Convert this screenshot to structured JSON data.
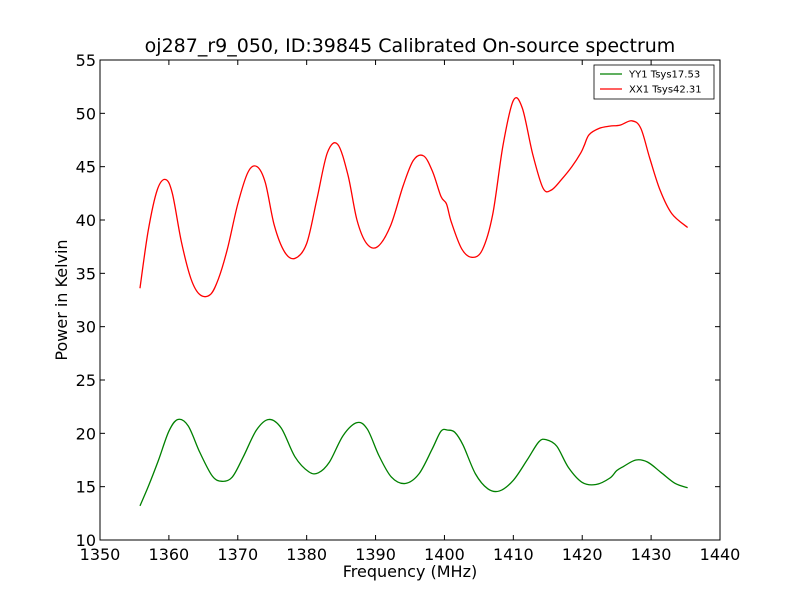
{
  "chart_data": {
    "type": "line",
    "title": "oj287_r9_050, ID:39845 Calibrated On-source spectrum",
    "xlabel": "Frequency (MHz)",
    "ylabel": "Power in Kelvin",
    "xlim": [
      1350,
      1440
    ],
    "ylim": [
      10,
      55
    ],
    "xticks": [
      "1350",
      "1360",
      "1370",
      "1380",
      "1390",
      "1400",
      "1410",
      "1420",
      "1430",
      "1440"
    ],
    "yticks": [
      "10",
      "15",
      "20",
      "25",
      "30",
      "35",
      "40",
      "45",
      "50",
      "55"
    ],
    "grid": false,
    "legend_position": "top-right",
    "series": [
      {
        "name": "YY1 Tsys17.53",
        "color": "#008000",
        "x": [
          1355.8,
          1357.0,
          1358.5,
          1360.0,
          1361.3,
          1362.8,
          1364.5,
          1366.3,
          1367.7,
          1369.2,
          1370.8,
          1372.7,
          1374.5,
          1376.3,
          1378.3,
          1380.3,
          1381.7,
          1383.3,
          1385.3,
          1387.3,
          1388.8,
          1390.5,
          1392.3,
          1394.3,
          1396.3,
          1398.2,
          1399.5,
          1400.5,
          1401.5,
          1402.7,
          1404.5,
          1406.3,
          1408.0,
          1410.0,
          1412.0,
          1413.7,
          1414.8,
          1416.3,
          1418.0,
          1420.0,
          1422.0,
          1424.0,
          1425.0,
          1426.0,
          1427.8,
          1429.5,
          1431.5,
          1433.5,
          1435.3
        ],
        "y": [
          13.2,
          15.0,
          17.5,
          20.2,
          21.3,
          20.7,
          18.2,
          16.0,
          15.5,
          15.9,
          17.8,
          20.3,
          21.3,
          20.5,
          17.8,
          16.4,
          16.3,
          17.3,
          19.8,
          21.0,
          20.4,
          17.9,
          15.9,
          15.3,
          16.2,
          18.5,
          20.2,
          20.3,
          20.1,
          18.9,
          16.2,
          14.8,
          14.6,
          15.6,
          17.5,
          19.2,
          19.4,
          18.8,
          16.8,
          15.4,
          15.2,
          15.8,
          16.5,
          16.9,
          17.5,
          17.3,
          16.3,
          15.3,
          14.9
        ]
      },
      {
        "name": "XX1 Tsys42.31",
        "color": "#ff0000",
        "x": [
          1355.8,
          1357.0,
          1358.3,
          1359.5,
          1360.5,
          1361.8,
          1363.2,
          1364.5,
          1366.0,
          1367.2,
          1368.5,
          1370.0,
          1371.5,
          1372.8,
          1374.0,
          1375.3,
          1376.8,
          1378.3,
          1380.0,
          1381.5,
          1383.0,
          1384.5,
          1386.0,
          1387.3,
          1388.7,
          1390.3,
          1392.2,
          1394.0,
          1395.5,
          1397.0,
          1398.3,
          1399.5,
          1400.3,
          1401.0,
          1402.5,
          1404.0,
          1405.5,
          1407.0,
          1408.5,
          1410.0,
          1411.3,
          1412.8,
          1414.3,
          1415.5,
          1417.0,
          1418.5,
          1419.8,
          1420.3,
          1421.0,
          1422.5,
          1424.0,
          1425.5,
          1427.2,
          1428.5,
          1429.8,
          1431.3,
          1433.0,
          1435.3
        ],
        "y": [
          33.6,
          39.0,
          42.8,
          43.8,
          42.5,
          38.0,
          34.5,
          33.0,
          33.0,
          34.5,
          37.3,
          41.5,
          44.5,
          45.0,
          43.5,
          39.5,
          37.0,
          36.4,
          37.8,
          42.0,
          46.3,
          47.1,
          44.2,
          40.0,
          37.8,
          37.5,
          39.5,
          43.2,
          45.6,
          46.0,
          44.5,
          42.2,
          41.5,
          39.8,
          37.3,
          36.5,
          37.2,
          40.5,
          47.0,
          51.2,
          50.5,
          46.2,
          43.0,
          42.8,
          43.8,
          45.0,
          46.3,
          47.0,
          48.0,
          48.6,
          48.8,
          48.9,
          49.3,
          48.6,
          45.8,
          42.8,
          40.6,
          39.3
        ]
      }
    ]
  }
}
